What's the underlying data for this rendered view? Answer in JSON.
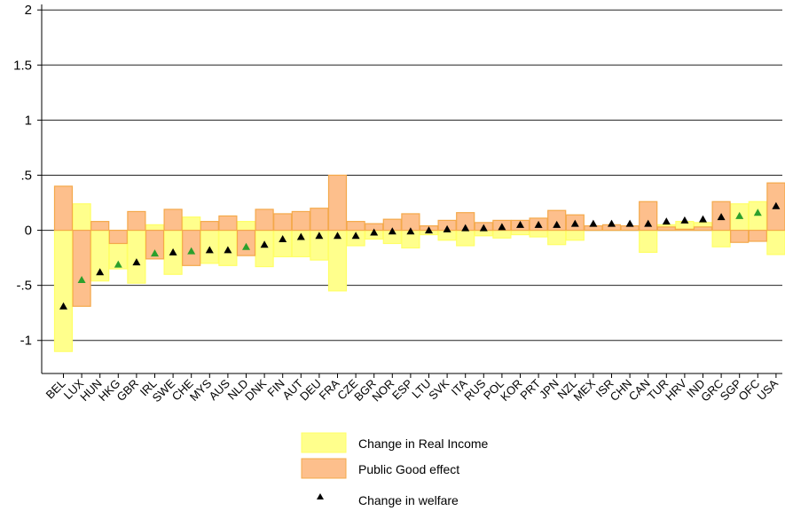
{
  "chart_data": {
    "type": "bar",
    "title": "",
    "xlabel": "",
    "ylabel": "",
    "ylim": [
      -1.3,
      2.05
    ],
    "yticks": [
      -1,
      -0.5,
      0,
      0.5,
      1,
      1.5,
      2
    ],
    "ytick_labels": [
      "-1",
      "-.5",
      "0",
      ".5",
      "1",
      "1.5",
      "2"
    ],
    "grid": true,
    "legend_position": "bottom",
    "categories": [
      "BEL",
      "LUX",
      "HUN",
      "HKG",
      "GBR",
      "IRL",
      "SWE",
      "CHE",
      "MYS",
      "AUS",
      "NLD",
      "DNK",
      "FIN",
      "AUT",
      "DEU",
      "FRA",
      "CZE",
      "BGR",
      "NOR",
      "ESP",
      "LTU",
      "SVK",
      "ITA",
      "RUS",
      "POL",
      "KOR",
      "PRT",
      "JPN",
      "NZL",
      "MEX",
      "ISR",
      "CHN",
      "CAN",
      "TUR",
      "HRV",
      "IND",
      "GRC",
      "SGP",
      "OFC",
      "USA"
    ],
    "series": [
      {
        "name": "Change in Real Income",
        "values": [
          -1.1,
          0.24,
          -0.46,
          -0.35,
          -0.48,
          0.05,
          -0.4,
          0.12,
          -0.3,
          -0.32,
          0.08,
          -0.33,
          -0.24,
          -0.24,
          -0.27,
          -0.55,
          -0.14,
          -0.08,
          -0.12,
          -0.16,
          -0.04,
          -0.09,
          -0.14,
          -0.05,
          -0.07,
          -0.04,
          -0.06,
          -0.13,
          -0.09,
          0.03,
          0.02,
          0.03,
          -0.2,
          0.05,
          0.08,
          0.07,
          -0.15,
          0.24,
          0.26,
          -0.22
        ],
        "color": "#ffff8c",
        "edge": "#ffff66"
      },
      {
        "name": "Public Good effect",
        "values": [
          0.4,
          -0.69,
          0.08,
          -0.12,
          0.17,
          -0.26,
          0.19,
          -0.32,
          0.08,
          0.13,
          -0.23,
          0.19,
          0.15,
          0.17,
          0.2,
          0.5,
          0.08,
          0.06,
          0.1,
          0.15,
          0.04,
          0.09,
          0.16,
          0.07,
          0.09,
          0.09,
          0.11,
          0.18,
          0.14,
          0.04,
          0.05,
          0.04,
          0.26,
          0.03,
          0.01,
          0.03,
          0.26,
          -0.11,
          -0.1,
          0.43
        ],
        "color": "#fdbf8c",
        "edge": "#f4a94a"
      },
      {
        "name": "Change in welfare",
        "values": [
          -0.69,
          -0.45,
          -0.38,
          -0.31,
          -0.29,
          -0.21,
          -0.2,
          -0.19,
          -0.18,
          -0.18,
          -0.15,
          -0.13,
          -0.08,
          -0.06,
          -0.05,
          -0.05,
          -0.05,
          -0.02,
          -0.01,
          -0.01,
          0.0,
          0.01,
          0.02,
          0.02,
          0.03,
          0.05,
          0.05,
          0.05,
          0.06,
          0.06,
          0.06,
          0.06,
          0.06,
          0.08,
          0.09,
          0.1,
          0.12,
          0.13,
          0.16,
          0.22
        ],
        "marker_colors": [
          "#000000",
          "#2ca02c",
          "#000000",
          "#2ca02c",
          "#000000",
          "#2ca02c",
          "#000000",
          "#2ca02c",
          "#000000",
          "#000000",
          "#2ca02c",
          "#000000",
          "#000000",
          "#000000",
          "#000000",
          "#000000",
          "#000000",
          "#000000",
          "#000000",
          "#000000",
          "#000000",
          "#000000",
          "#000000",
          "#000000",
          "#000000",
          "#000000",
          "#000000",
          "#000000",
          "#000000",
          "#000000",
          "#000000",
          "#000000",
          "#000000",
          "#000000",
          "#000000",
          "#000000",
          "#000000",
          "#2ca02c",
          "#2ca02c",
          "#000000"
        ]
      }
    ]
  },
  "legend": {
    "real_income": "Change in Real Income",
    "public_good": "Public Good effect",
    "welfare": "Change in welfare"
  }
}
